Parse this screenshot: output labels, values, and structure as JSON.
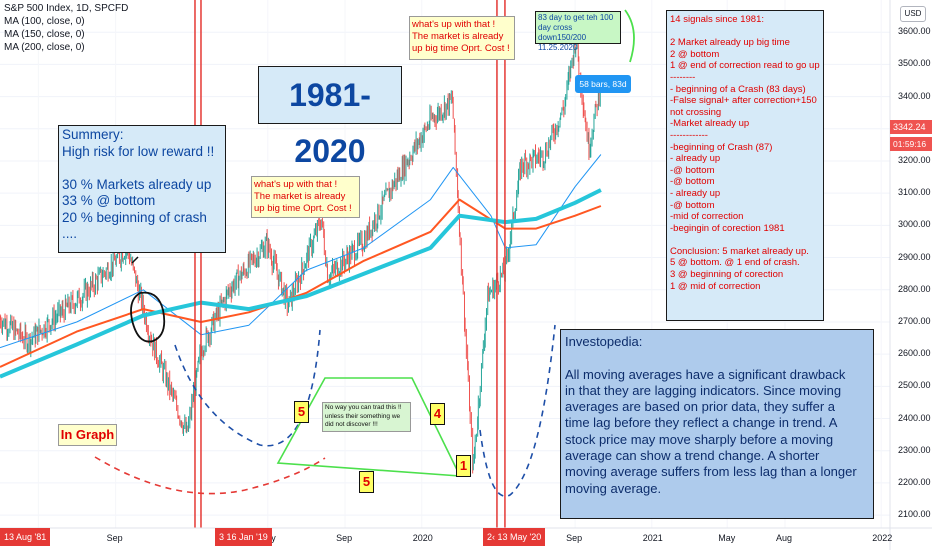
{
  "header": {
    "symbol": "S&P 500 Index, 1D, SPCFD",
    "ma1": "MA (100, close, 0)",
    "ma2": "MA (150, close, 0)",
    "ma3": "MA (200, close, 0)"
  },
  "annotations": {
    "title": "1981-2020",
    "summery": "Summery:\nHigh risk for low reward !!\n\n30 % Markets already up\n33 % @ bottom\n20 % beginning of crash\n....",
    "whats_up_1": "what's up with that !\nThe market is already\nup big time Oprt. Cost !",
    "whats_up_2": "what's up with that !\nThe market is already\nup big time Oprt. Cost !",
    "day83": "83 day to get teh 100\nday cross down150/200\n11.25.2020",
    "bars_tag": "58 bars, 83d",
    "signals": "14 signals since 1981:\n\n2 Market already up big time\n2 @ bottom\n1 @ end of correction read to go up\n--------\n- beginning of a Crash   (83 days)\n-False signal+ after correction+150\n not crossing\n-Market already up\n------------\n-beginning of Crash (87)\n- already up\n-@ bottom\n-@ bottom\n- already up\n-@ bottom\n-mid of correction\n-begingin of corection  1981\n\nConclusion:  5  market already up.\n5 @ bottom.  @  1 end of crash.\n3 @    beginning of corection\n1 @ mid of correction",
    "investopedia": "Investopedia:\n\nAll moving averages have a significant drawback\n in that they are lagging indicators. Since moving\n averages are based on prior data, they suffer a\ntime lag before they reflect a change in trend. A\n stock price may move sharply before a moving\naverage can show a trend change. A shorter\nmoving average suffers from less lag than a longer\nmoving average.",
    "no_way": "No way you can trad this !!\nunless their something we\ndid not discover !!!",
    "in_graph": "In Graph",
    "num_5a": "5",
    "num_4": "4",
    "num_1": "1",
    "num_5b": "5"
  },
  "price_axis": {
    "labels": [
      "3600.00",
      "3500.00",
      "3400.00",
      "3300.00",
      "3200.00",
      "3100.00",
      "3000.00",
      "2900.00",
      "2800.00",
      "2700.00",
      "2600.00",
      "2500.00",
      "2400.00",
      "2300.00",
      "2200.00",
      "2100.00"
    ],
    "last_price": "3342.24",
    "countdown": "01:59:16",
    "currency": "USD"
  },
  "time_axis": {
    "labels": [
      "May",
      "Sep",
      "May",
      "Sep",
      "2020",
      "May",
      "Sep",
      "2021",
      "May",
      "Aug",
      "2022"
    ],
    "date_tags": [
      "13 Aug '81",
      "3  16 Jan '19",
      "2‹ 13 May '20"
    ]
  },
  "colors": {
    "price_bars_up": "#26a69a",
    "price_bars_down": "#ef5350",
    "ma100": "#2196f3",
    "ma150": "#ff5722",
    "ma200": "#26c6da",
    "vertical_lines": "#e53935"
  },
  "chart_data": {
    "type": "line",
    "title": "S&P 500 Index, 1D, SPCFD",
    "ylim": [
      2060,
      3700
    ],
    "x_range": [
      "2018-03-01",
      "2022-01-15"
    ],
    "series": [
      {
        "name": "Close",
        "x": [
          "2018-03-01",
          "2018-04-15",
          "2018-06-01",
          "2018-07-15",
          "2018-09-20",
          "2018-10-29",
          "2018-12-24",
          "2019-01-16",
          "2019-03-01",
          "2019-04-30",
          "2019-06-03",
          "2019-07-26",
          "2019-08-05",
          "2019-10-01",
          "2019-11-15",
          "2020-01-17",
          "2020-02-19",
          "2020-03-23",
          "2020-04-15",
          "2020-05-13",
          "2020-06-08",
          "2020-07-15",
          "2020-08-15",
          "2020-09-02",
          "2020-09-23",
          "2020-10-12"
        ],
        "y": [
          2710,
          2640,
          2720,
          2790,
          2930,
          2640,
          2350,
          2620,
          2800,
          2945,
          2750,
          3020,
          2840,
          2950,
          3120,
          3330,
          3390,
          2240,
          2780,
          2860,
          3190,
          3220,
          3370,
          3580,
          3240,
          3440
        ]
      },
      {
        "name": "MA (100, close, 0)",
        "x": [
          "2018-03-01",
          "2018-07-01",
          "2018-10-15",
          "2019-01-15",
          "2019-04-01",
          "2019-07-01",
          "2019-10-01",
          "2020-01-15",
          "2020-02-20",
          "2020-04-20",
          "2020-05-13",
          "2020-07-01",
          "2020-09-01",
          "2020-10-12"
        ],
        "y": [
          2620,
          2700,
          2800,
          2660,
          2690,
          2860,
          2930,
          3080,
          3180,
          3030,
          2930,
          2940,
          3120,
          3220
        ]
      },
      {
        "name": "MA (150, close, 0)",
        "x": [
          "2018-03-01",
          "2018-07-01",
          "2018-10-15",
          "2019-01-15",
          "2019-04-01",
          "2019-07-01",
          "2019-10-01",
          "2020-01-15",
          "2020-03-01",
          "2020-05-13",
          "2020-07-01",
          "2020-09-01",
          "2020-10-12"
        ],
        "y": [
          2560,
          2670,
          2740,
          2700,
          2730,
          2790,
          2890,
          2980,
          3080,
          2990,
          2990,
          3030,
          3060
        ]
      },
      {
        "name": "MA (200, close, 0)",
        "x": [
          "2018-03-01",
          "2018-07-01",
          "2018-10-15",
          "2019-01-15",
          "2019-04-01",
          "2019-07-01",
          "2019-10-01",
          "2020-01-15",
          "2020-03-01",
          "2020-05-13",
          "2020-07-01",
          "2020-09-01",
          "2020-10-12"
        ],
        "y": [
          2530,
          2630,
          2720,
          2760,
          2740,
          2780,
          2850,
          2930,
          3030,
          3010,
          3020,
          3070,
          3110
        ]
      }
    ]
  }
}
